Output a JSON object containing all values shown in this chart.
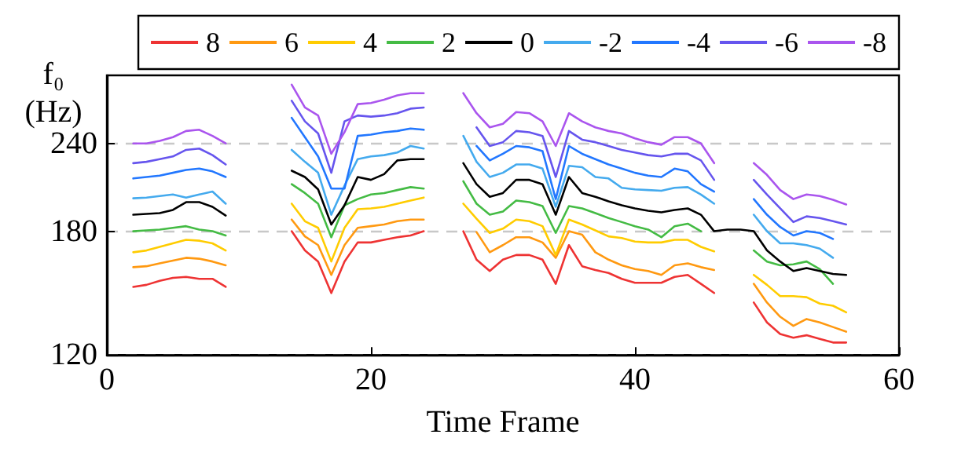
{
  "chart_data": {
    "type": "line",
    "xlabel": "Time Frame",
    "ylabel": "f₀\n(Hz)",
    "x": [
      2,
      3,
      4,
      5,
      6,
      7,
      8,
      9,
      10,
      11,
      12,
      13,
      14,
      15,
      16,
      17,
      18,
      19,
      20,
      21,
      22,
      23,
      24,
      25,
      26,
      27,
      28,
      29,
      30,
      31,
      32,
      33,
      34,
      35,
      36,
      37,
      38,
      39,
      40,
      41,
      42,
      43,
      44,
      45,
      46,
      47,
      48,
      49,
      50,
      51,
      52,
      53,
      54,
      55,
      56
    ],
    "xlim": [
      0,
      60
    ],
    "xticks": [
      0,
      20,
      40,
      60
    ],
    "ylim": [
      120,
      300
    ],
    "yticks": [
      120,
      180,
      240
    ],
    "log": "y",
    "grid": "y",
    "legend": "top",
    "marker": "none",
    "line_style": "solid",
    "series": [
      {
        "name": "8",
        "color": "#ee3333",
        "values": [
          150,
          151,
          153,
          154.5,
          155,
          154,
          154,
          150,
          null,
          null,
          null,
          null,
          180,
          169,
          163,
          147,
          163,
          173.5,
          173.5,
          175,
          176.5,
          177.5,
          180,
          null,
          null,
          180,
          164,
          158,
          164,
          166.5,
          166.5,
          164,
          151.5,
          172,
          160.5,
          158.5,
          157,
          154,
          152,
          152,
          152,
          155,
          156,
          151.5,
          147,
          null,
          null,
          142.5,
          133.5,
          128.5,
          127,
          128,
          126.5,
          125,
          125
        ]
      },
      {
        "name": "6",
        "color": "#ff9911",
        "values": [
          160,
          160.5,
          162,
          163.5,
          165,
          164.5,
          163,
          161,
          null,
          null,
          null,
          null,
          187,
          177,
          172,
          156,
          172,
          182,
          183,
          184,
          186,
          187,
          187,
          null,
          null,
          null,
          179.5,
          168,
          172,
          176.5,
          176.5,
          173.5,
          165,
          180,
          178,
          168,
          164,
          161,
          159,
          158,
          156,
          161,
          162,
          160,
          158.5,
          null,
          null,
          151.5,
          142.5,
          136,
          132,
          135,
          133.5,
          131.5,
          129.5
        ]
      },
      {
        "name": "4",
        "color": "#ffcc00",
        "values": [
          168,
          169,
          171,
          173,
          175,
          174.5,
          173,
          169,
          null,
          null,
          null,
          null,
          197,
          186,
          182,
          163,
          182,
          193.5,
          194,
          195,
          197,
          199,
          201,
          null,
          null,
          197,
          187.5,
          179,
          181.5,
          187,
          186,
          183,
          166.5,
          187,
          184,
          180.5,
          177,
          176,
          174,
          173.5,
          173.5,
          175,
          175,
          171,
          168.5,
          null,
          null,
          156,
          151,
          145.5,
          145.5,
          145,
          142,
          141,
          138
        ]
      },
      {
        "name": "2",
        "color": "#44bb44",
        "values": [
          180,
          180.5,
          181,
          182,
          183,
          181,
          180,
          177.5,
          null,
          null,
          null,
          null,
          210,
          204,
          197,
          176.5,
          196,
          200,
          203,
          204,
          206,
          208,
          207,
          null,
          null,
          212,
          197,
          190,
          192,
          199,
          198,
          195.5,
          179,
          195.5,
          194,
          191,
          188,
          185.5,
          183,
          181,
          176.5,
          183,
          184.5,
          180,
          null,
          null,
          null,
          169,
          163,
          161,
          161.5,
          163,
          159,
          151.5,
          null
        ]
      },
      {
        "name": "0",
        "color": "#000000",
        "values": [
          190,
          190.5,
          191,
          193,
          198,
          198,
          195,
          189.5,
          null,
          null,
          null,
          null,
          219.5,
          215,
          206.5,
          184,
          196,
          215,
          213,
          217,
          227,
          228,
          228,
          null,
          null,
          225,
          210,
          201.5,
          204,
          213,
          213,
          210,
          190,
          215,
          204,
          201.5,
          198.5,
          196,
          194,
          192.5,
          191.5,
          193,
          194,
          190,
          180,
          181,
          181,
          180,
          169,
          163,
          158,
          159.5,
          158,
          156.5,
          156
        ]
      },
      {
        "name": "-2",
        "color": "#44aaee",
        "values": [
          200.5,
          201,
          202,
          203,
          201,
          203,
          205,
          197,
          null,
          null,
          null,
          null,
          235,
          226,
          218,
          190,
          209,
          228,
          230,
          231,
          233,
          238,
          236,
          null,
          null,
          246,
          226,
          215,
          218,
          224,
          224,
          221,
          195,
          223,
          222,
          215,
          214,
          207.5,
          206.5,
          206,
          205.5,
          207.5,
          208,
          203,
          197,
          null,
          null,
          190,
          180,
          173,
          173,
          172,
          170,
          165,
          null
        ]
      },
      {
        "name": "-4",
        "color": "#2277ff",
        "values": [
          214,
          215,
          216,
          218,
          220,
          221,
          219,
          215,
          null,
          null,
          null,
          null,
          261,
          245,
          230,
          207,
          207,
          246,
          247,
          249,
          250,
          252,
          251,
          null,
          null,
          null,
          238,
          227,
          232,
          238,
          237,
          234,
          200,
          238,
          232,
          228,
          224,
          221,
          218,
          216,
          215,
          221,
          219,
          210,
          205,
          null,
          null,
          200,
          190,
          182.5,
          177.5,
          180,
          179,
          175.5,
          null
        ]
      },
      {
        "name": "-6",
        "color": "#6655ee",
        "values": [
          225,
          226,
          228,
          230,
          235,
          236,
          231,
          224,
          null,
          null,
          null,
          null,
          276,
          258,
          248,
          218,
          258,
          263,
          262,
          263,
          265,
          269,
          270,
          null,
          null,
          null,
          253,
          238,
          241,
          250,
          249,
          246,
          215,
          250,
          243,
          241,
          238,
          235,
          233,
          231,
          230,
          232,
          232,
          227,
          213,
          null,
          null,
          213,
          203,
          194,
          185.5,
          189,
          188,
          186,
          184
        ]
      },
      {
        "name": "-8",
        "color": "#aa55ee",
        "values": [
          240,
          240,
          242,
          245,
          250,
          251,
          246,
          240,
          null,
          null,
          null,
          null,
          291,
          270,
          263,
          232,
          249,
          273,
          274,
          277,
          281,
          283,
          283,
          null,
          null,
          283,
          265,
          253,
          256,
          266,
          265,
          258,
          238,
          265,
          258,
          253,
          250,
          248,
          244,
          241,
          239,
          245,
          245,
          240,
          225,
          null,
          null,
          225,
          216.5,
          206,
          200,
          203,
          202,
          199.5,
          196.5
        ]
      }
    ]
  }
}
